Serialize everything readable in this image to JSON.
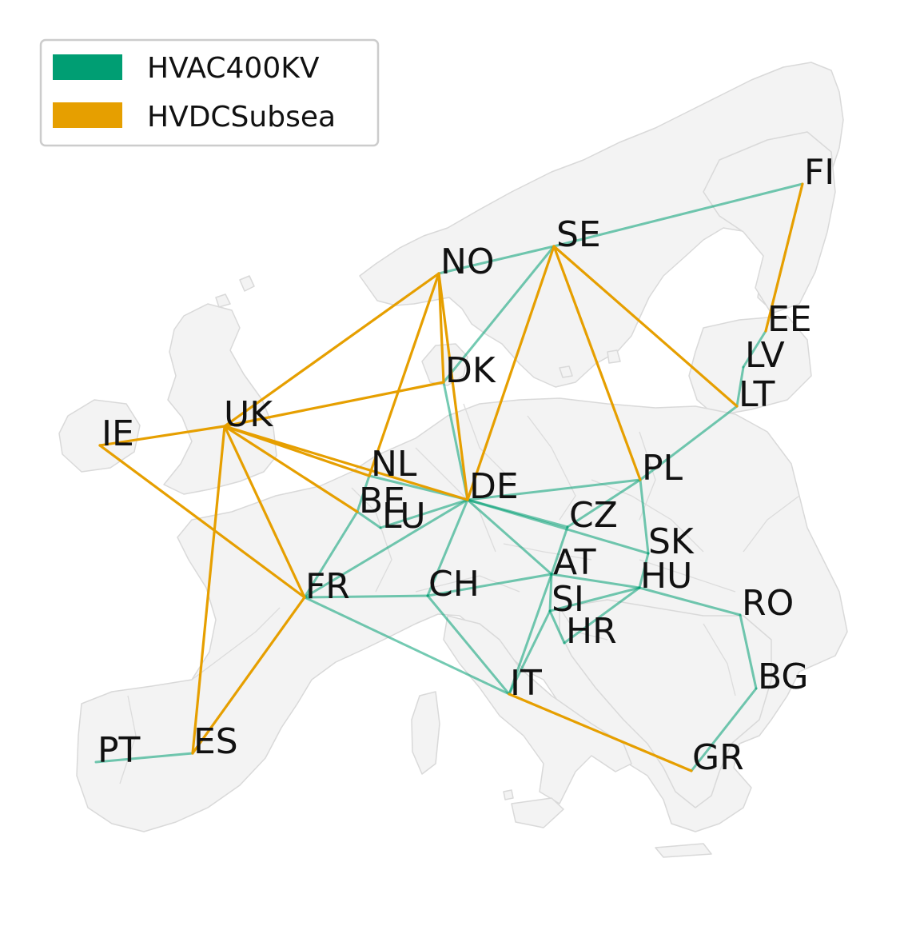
{
  "colors": {
    "hvac": "#009E73",
    "hvdc": "#E69F00",
    "land": "#f3f3f3",
    "border": "#d9d9d9"
  },
  "legend": {
    "items": [
      {
        "label": "HVAC400KV",
        "color": "#009E73"
      },
      {
        "label": "HVDCSubsea",
        "color": "#E69F00"
      }
    ]
  },
  "nodes": [
    {
      "id": "FI",
      "label": "FI"
    },
    {
      "id": "SE",
      "label": "SE"
    },
    {
      "id": "NO",
      "label": "NO"
    },
    {
      "id": "EE",
      "label": "EE"
    },
    {
      "id": "LV",
      "label": "LV"
    },
    {
      "id": "LT",
      "label": "LT"
    },
    {
      "id": "DK",
      "label": "DK"
    },
    {
      "id": "UK",
      "label": "UK"
    },
    {
      "id": "IE",
      "label": "IE"
    },
    {
      "id": "NL",
      "label": "NL"
    },
    {
      "id": "BE",
      "label": "BE"
    },
    {
      "id": "LU",
      "label": "LU"
    },
    {
      "id": "DE",
      "label": "DE"
    },
    {
      "id": "PL",
      "label": "PL"
    },
    {
      "id": "CZ",
      "label": "CZ"
    },
    {
      "id": "SK",
      "label": "SK"
    },
    {
      "id": "FR",
      "label": "FR"
    },
    {
      "id": "CH",
      "label": "CH"
    },
    {
      "id": "AT",
      "label": "AT"
    },
    {
      "id": "HU",
      "label": "HU"
    },
    {
      "id": "SI",
      "label": "SI"
    },
    {
      "id": "HR",
      "label": "HR"
    },
    {
      "id": "RO",
      "label": "RO"
    },
    {
      "id": "BG",
      "label": "BG"
    },
    {
      "id": "IT",
      "label": "IT"
    },
    {
      "id": "GR",
      "label": "GR"
    },
    {
      "id": "ES",
      "label": "ES"
    },
    {
      "id": "PT",
      "label": "PT"
    }
  ],
  "links": [
    {
      "from": "NO",
      "to": "SE",
      "type": "HVAC400KV"
    },
    {
      "from": "SE",
      "to": "FI",
      "type": "HVAC400KV"
    },
    {
      "from": "SE",
      "to": "DK",
      "type": "HVAC400KV"
    },
    {
      "from": "DK",
      "to": "DE",
      "type": "HVAC400KV"
    },
    {
      "from": "EE",
      "to": "LV",
      "type": "HVAC400KV"
    },
    {
      "from": "LV",
      "to": "LT",
      "type": "HVAC400KV"
    },
    {
      "from": "LT",
      "to": "PL",
      "type": "HVAC400KV"
    },
    {
      "from": "NL",
      "to": "BE",
      "type": "HVAC400KV"
    },
    {
      "from": "NL",
      "to": "DE",
      "type": "HVAC400KV"
    },
    {
      "from": "BE",
      "to": "LU",
      "type": "HVAC400KV"
    },
    {
      "from": "BE",
      "to": "FR",
      "type": "HVAC400KV"
    },
    {
      "from": "LU",
      "to": "DE",
      "type": "HVAC400KV"
    },
    {
      "from": "DE",
      "to": "FR",
      "type": "HVAC400KV"
    },
    {
      "from": "DE",
      "to": "PL",
      "type": "HVAC400KV"
    },
    {
      "from": "DE",
      "to": "CZ",
      "type": "HVAC400KV"
    },
    {
      "from": "DE",
      "to": "SK",
      "type": "HVAC400KV"
    },
    {
      "from": "DE",
      "to": "CH",
      "type": "HVAC400KV"
    },
    {
      "from": "DE",
      "to": "AT",
      "type": "HVAC400KV"
    },
    {
      "from": "PL",
      "to": "CZ",
      "type": "HVAC400KV"
    },
    {
      "from": "PL",
      "to": "SK",
      "type": "HVAC400KV"
    },
    {
      "from": "CZ",
      "to": "AT",
      "type": "HVAC400KV"
    },
    {
      "from": "SK",
      "to": "HU",
      "type": "HVAC400KV"
    },
    {
      "from": "FR",
      "to": "CH",
      "type": "HVAC400KV"
    },
    {
      "from": "FR",
      "to": "IT",
      "type": "HVAC400KV"
    },
    {
      "from": "CH",
      "to": "AT",
      "type": "HVAC400KV"
    },
    {
      "from": "CH",
      "to": "IT",
      "type": "HVAC400KV"
    },
    {
      "from": "AT",
      "to": "HU",
      "type": "HVAC400KV"
    },
    {
      "from": "AT",
      "to": "SI",
      "type": "HVAC400KV"
    },
    {
      "from": "AT",
      "to": "IT",
      "type": "HVAC400KV"
    },
    {
      "from": "SI",
      "to": "HU",
      "type": "HVAC400KV"
    },
    {
      "from": "SI",
      "to": "HR",
      "type": "HVAC400KV"
    },
    {
      "from": "SI",
      "to": "IT",
      "type": "HVAC400KV"
    },
    {
      "from": "HU",
      "to": "HR",
      "type": "HVAC400KV"
    },
    {
      "from": "HU",
      "to": "RO",
      "type": "HVAC400KV"
    },
    {
      "from": "RO",
      "to": "BG",
      "type": "HVAC400KV"
    },
    {
      "from": "BG",
      "to": "GR",
      "type": "HVAC400KV"
    },
    {
      "from": "ES",
      "to": "PT",
      "type": "HVAC400KV"
    },
    {
      "from": "FI",
      "to": "EE",
      "type": "HVDCSubsea"
    },
    {
      "from": "SE",
      "to": "LT",
      "type": "HVDCSubsea"
    },
    {
      "from": "SE",
      "to": "PL",
      "type": "HVDCSubsea"
    },
    {
      "from": "SE",
      "to": "DE",
      "type": "HVDCSubsea"
    },
    {
      "from": "NO",
      "to": "UK",
      "type": "HVDCSubsea"
    },
    {
      "from": "NO",
      "to": "DK",
      "type": "HVDCSubsea"
    },
    {
      "from": "NO",
      "to": "NL",
      "type": "HVDCSubsea"
    },
    {
      "from": "NO",
      "to": "DE",
      "type": "HVDCSubsea"
    },
    {
      "from": "UK",
      "to": "DK",
      "type": "HVDCSubsea"
    },
    {
      "from": "UK",
      "to": "IE",
      "type": "HVDCSubsea"
    },
    {
      "from": "UK",
      "to": "NL",
      "type": "HVDCSubsea"
    },
    {
      "from": "UK",
      "to": "BE",
      "type": "HVDCSubsea"
    },
    {
      "from": "UK",
      "to": "DE",
      "type": "HVDCSubsea"
    },
    {
      "from": "UK",
      "to": "FR",
      "type": "HVDCSubsea"
    },
    {
      "from": "UK",
      "to": "ES",
      "type": "HVDCSubsea"
    },
    {
      "from": "IE",
      "to": "FR",
      "type": "HVDCSubsea"
    },
    {
      "from": "FR",
      "to": "ES",
      "type": "HVDCSubsea"
    },
    {
      "from": "IT",
      "to": "GR",
      "type": "HVDCSubsea"
    }
  ]
}
